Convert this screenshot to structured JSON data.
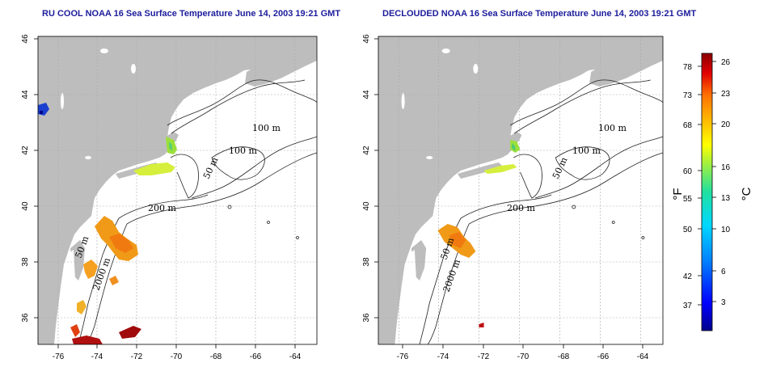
{
  "titles": {
    "left": "RU COOL NOAA 16 Sea Surface Temperature June 14, 2003 19:21 GMT",
    "right": "DECLOUDED NOAA 16 Sea Surface Temperature June 14, 2003 19:21 GMT"
  },
  "axes": {
    "lon_ticks": [
      "-76",
      "-74",
      "-72",
      "-70",
      "-68",
      "-66",
      "-64"
    ],
    "lat_ticks": [
      "46",
      "44",
      "42",
      "40",
      "38",
      "36"
    ]
  },
  "contour_labels": [
    "100 m",
    "100 m",
    "50 m",
    "200 m",
    "50 m",
    "2000 m"
  ],
  "colorbar": {
    "fahrenheit_ticks": [
      "78",
      "73",
      "68",
      "60",
      "55",
      "50",
      "42",
      "37"
    ],
    "celsius_ticks": [
      "26",
      "23",
      "20",
      "16",
      "13",
      "10",
      "6",
      "3"
    ],
    "fahrenheit_unit": "°F",
    "celsius_unit": "°C"
  },
  "colors": {
    "title": "#1c1c9c",
    "land": "#bdbdbd",
    "ocean": "#ffffff"
  }
}
